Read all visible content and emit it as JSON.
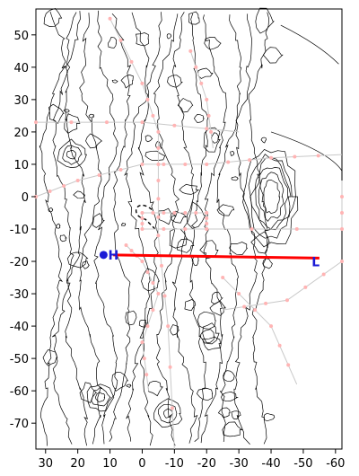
{
  "map": {
    "x_axis": {
      "range": [
        33,
        -62
      ],
      "ticks": [
        30,
        20,
        10,
        0,
        -10,
        -20,
        -30,
        -40,
        -50,
        -60
      ]
    },
    "y_axis": {
      "range": [
        -78,
        58
      ],
      "ticks": [
        50,
        40,
        30,
        20,
        10,
        0,
        -10,
        -20,
        -30,
        -40,
        -50,
        -60,
        -70
      ]
    },
    "profile_line": {
      "start": [
        9,
        -18
      ],
      "end": [
        -55,
        -19
      ],
      "color": "#ff0000"
    },
    "markers": [
      {
        "label": "H",
        "x": 10,
        "y": -18,
        "color": "#1a1ad6"
      },
      {
        "label": "L",
        "x": -54,
        "y": -19,
        "color": "#1a1ad6"
      }
    ],
    "track_color": "#c8c8c8",
    "station_color": "#ffb4b4",
    "contour_color": "#000000"
  }
}
